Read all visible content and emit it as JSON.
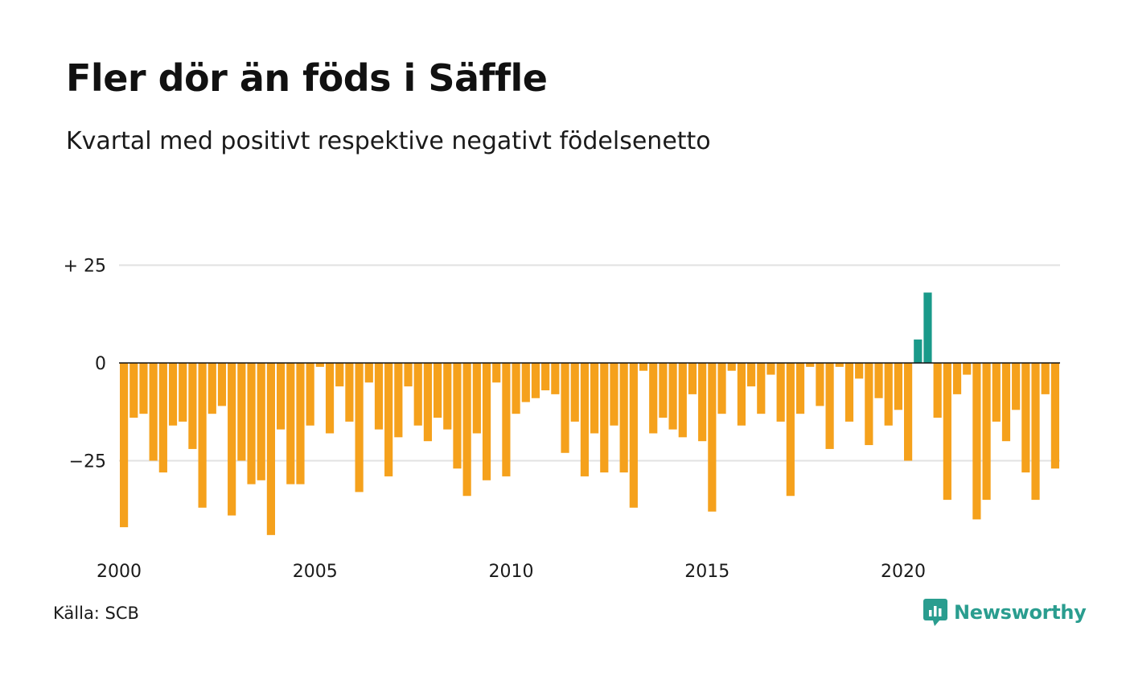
{
  "title": "Fler dör än föds i Säffle",
  "subtitle": "Kvartal med positivt respektive negativt födelsenetto",
  "source": "Källa: SCB",
  "brand": {
    "name": "Newsworthy",
    "icon": "newsworthy-logo-icon"
  },
  "colors": {
    "negative": "#f5a11c",
    "positive": "#1a9a8a",
    "grid": "#e2e2e2",
    "zero": "#111111",
    "brand": "#2a9d8f"
  },
  "chart_data": {
    "type": "bar",
    "x_start": "2000-Q1",
    "frequency": "quarterly",
    "x_ticks": [
      "2000",
      "2005",
      "2010",
      "2015",
      "2020"
    ],
    "y_ticks": [
      {
        "value": 25,
        "label": "+ 25"
      },
      {
        "value": 0,
        "label": "0"
      },
      {
        "value": -25,
        "label": "−25"
      }
    ],
    "ylim": [
      -45,
      25
    ],
    "grid": true,
    "values": [
      -42,
      -14,
      -13,
      -25,
      -28,
      -16,
      -15,
      -22,
      -37,
      -13,
      -11,
      -39,
      -25,
      -31,
      -30,
      -44,
      -17,
      -31,
      -31,
      -16,
      -1,
      -18,
      -6,
      -15,
      -33,
      -5,
      -17,
      -29,
      -19,
      -6,
      -16,
      -20,
      -14,
      -17,
      -27,
      -34,
      -18,
      -30,
      -5,
      -29,
      -13,
      -10,
      -9,
      -7,
      -8,
      -23,
      -15,
      -29,
      -18,
      -28,
      -16,
      -28,
      -37,
      -2,
      -18,
      -14,
      -17,
      -19,
      -8,
      -20,
      -38,
      -13,
      -2,
      -16,
      -6,
      -13,
      -3,
      -15,
      -34,
      -13,
      -1,
      -11,
      -22,
      -1,
      -15,
      -4,
      -21,
      -9,
      -16,
      -12,
      -25,
      6,
      18,
      -14,
      -35,
      -8,
      -3,
      -40,
      -35,
      -15,
      -20,
      -12,
      -28,
      -35,
      -8,
      -27
    ]
  }
}
